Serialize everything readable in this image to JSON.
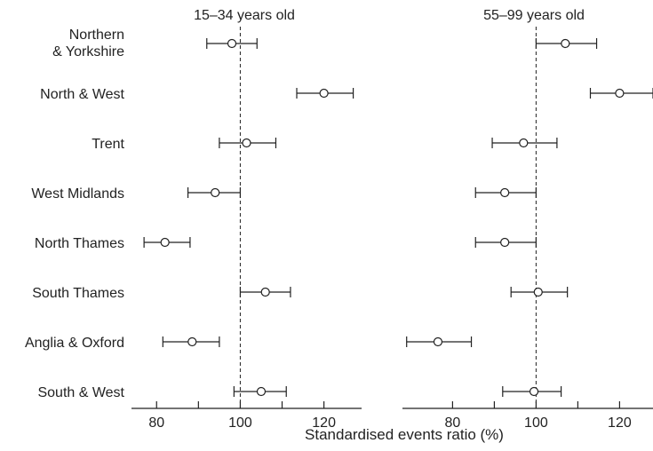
{
  "chart_data": [
    {
      "type": "forest",
      "title": "15–34 years old",
      "xlabel": "Standardised events ratio (%)",
      "xlim": [
        74,
        129
      ],
      "xticks": [
        80,
        100,
        120
      ],
      "minor_ticks": [
        90,
        110
      ],
      "reference_line": 100,
      "categories": [
        "Northern & Yorkshire",
        "North & West",
        "Trent",
        "West Midlands",
        "North Thames",
        "South Thames",
        "Anglia & Oxford",
        "South & West"
      ],
      "estimates": [
        98,
        120,
        101.5,
        94,
        82,
        106,
        88.5,
        105
      ],
      "lower": [
        92,
        113.5,
        95,
        87.5,
        77,
        100,
        81.5,
        98.5
      ],
      "upper": [
        104,
        127,
        108.5,
        100,
        88,
        112,
        95,
        111
      ]
    },
    {
      "type": "forest",
      "title": "55–99 years old",
      "xlabel": "Standardised events ratio (%)",
      "xlim": [
        68,
        128
      ],
      "xticks": [
        80,
        100,
        120
      ],
      "minor_ticks": [
        90,
        110
      ],
      "reference_line": 100,
      "categories": [
        "Northern & Yorkshire",
        "North & West",
        "Trent",
        "West Midlands",
        "North Thames",
        "South Thames",
        "Anglia & Oxford",
        "South & West"
      ],
      "estimates": [
        107,
        120,
        97,
        92.5,
        92.5,
        100.5,
        76.5,
        99.5
      ],
      "lower": [
        100,
        113,
        89.5,
        85.5,
        85.5,
        94,
        69,
        92
      ],
      "upper": [
        114.5,
        128,
        105,
        100,
        100,
        107.5,
        84.5,
        106
      ]
    }
  ],
  "labels": {
    "row_labels": [
      [
        "Northern",
        "& Yorkshire"
      ],
      [
        "North & West"
      ],
      [
        "Trent"
      ],
      [
        "West Midlands"
      ],
      [
        "North Thames"
      ],
      [
        "South Thames"
      ],
      [
        "Anglia & Oxford"
      ],
      [
        "South & West"
      ]
    ]
  }
}
